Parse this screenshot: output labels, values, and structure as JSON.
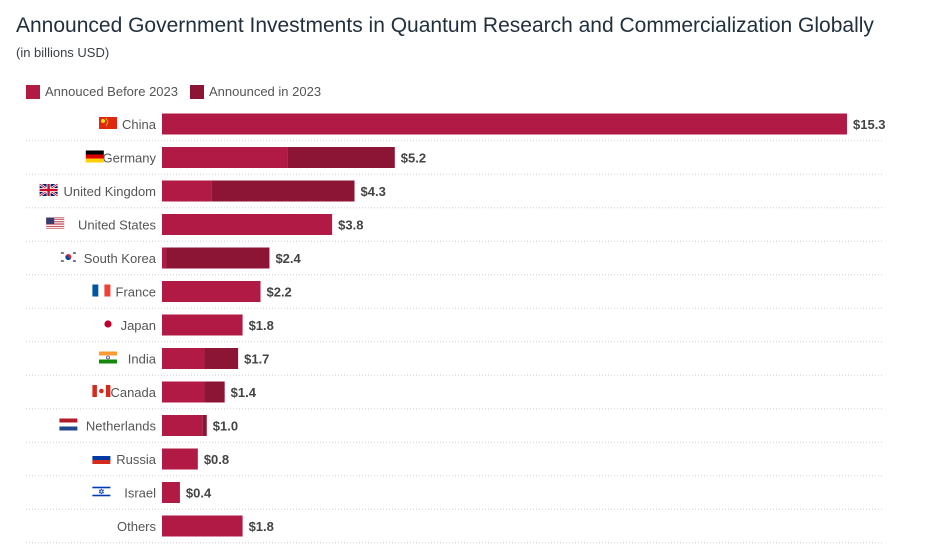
{
  "chart_data": {
    "type": "bar",
    "orientation": "horizontal",
    "stacked": true,
    "title": "Announced Government Investments in Quantum Research and Commercialization Globally",
    "subtitle": "(in billions USD)",
    "legend_position": "top-left",
    "categories": [
      "China",
      "Germany",
      "United Kingdom",
      "United States",
      "South Korea",
      "France",
      "Japan",
      "India",
      "Canada",
      "Netherlands",
      "Russia",
      "Israel",
      "Others"
    ],
    "flags": [
      "cn",
      "de",
      "gb",
      "us",
      "kr",
      "fr",
      "jp",
      "in",
      "ca",
      "nl",
      "ru",
      "il",
      ""
    ],
    "series": [
      {
        "name": "Annouced Before 2023",
        "color": "#b01a44",
        "values": [
          15.3,
          2.8,
          1.1,
          3.8,
          0.1,
          2.2,
          1.8,
          0.95,
          0.95,
          0.9,
          0.8,
          0.4,
          1.8
        ]
      },
      {
        "name": "Announced in 2023",
        "color": "#8c1535",
        "values": [
          0,
          2.4,
          3.2,
          0,
          2.3,
          0,
          0,
          0.75,
          0.45,
          0.1,
          0,
          0,
          0
        ]
      }
    ],
    "total_labels": [
      "$15.3",
      "$5.2",
      "$4.3",
      "$3.8",
      "$2.4",
      "$2.2",
      "$1.8",
      "$1.7",
      "$1.4",
      "$1.0",
      "$0.8",
      "$0.4",
      "$1.8"
    ],
    "xlim": [
      0,
      15.3
    ],
    "grid": false
  }
}
